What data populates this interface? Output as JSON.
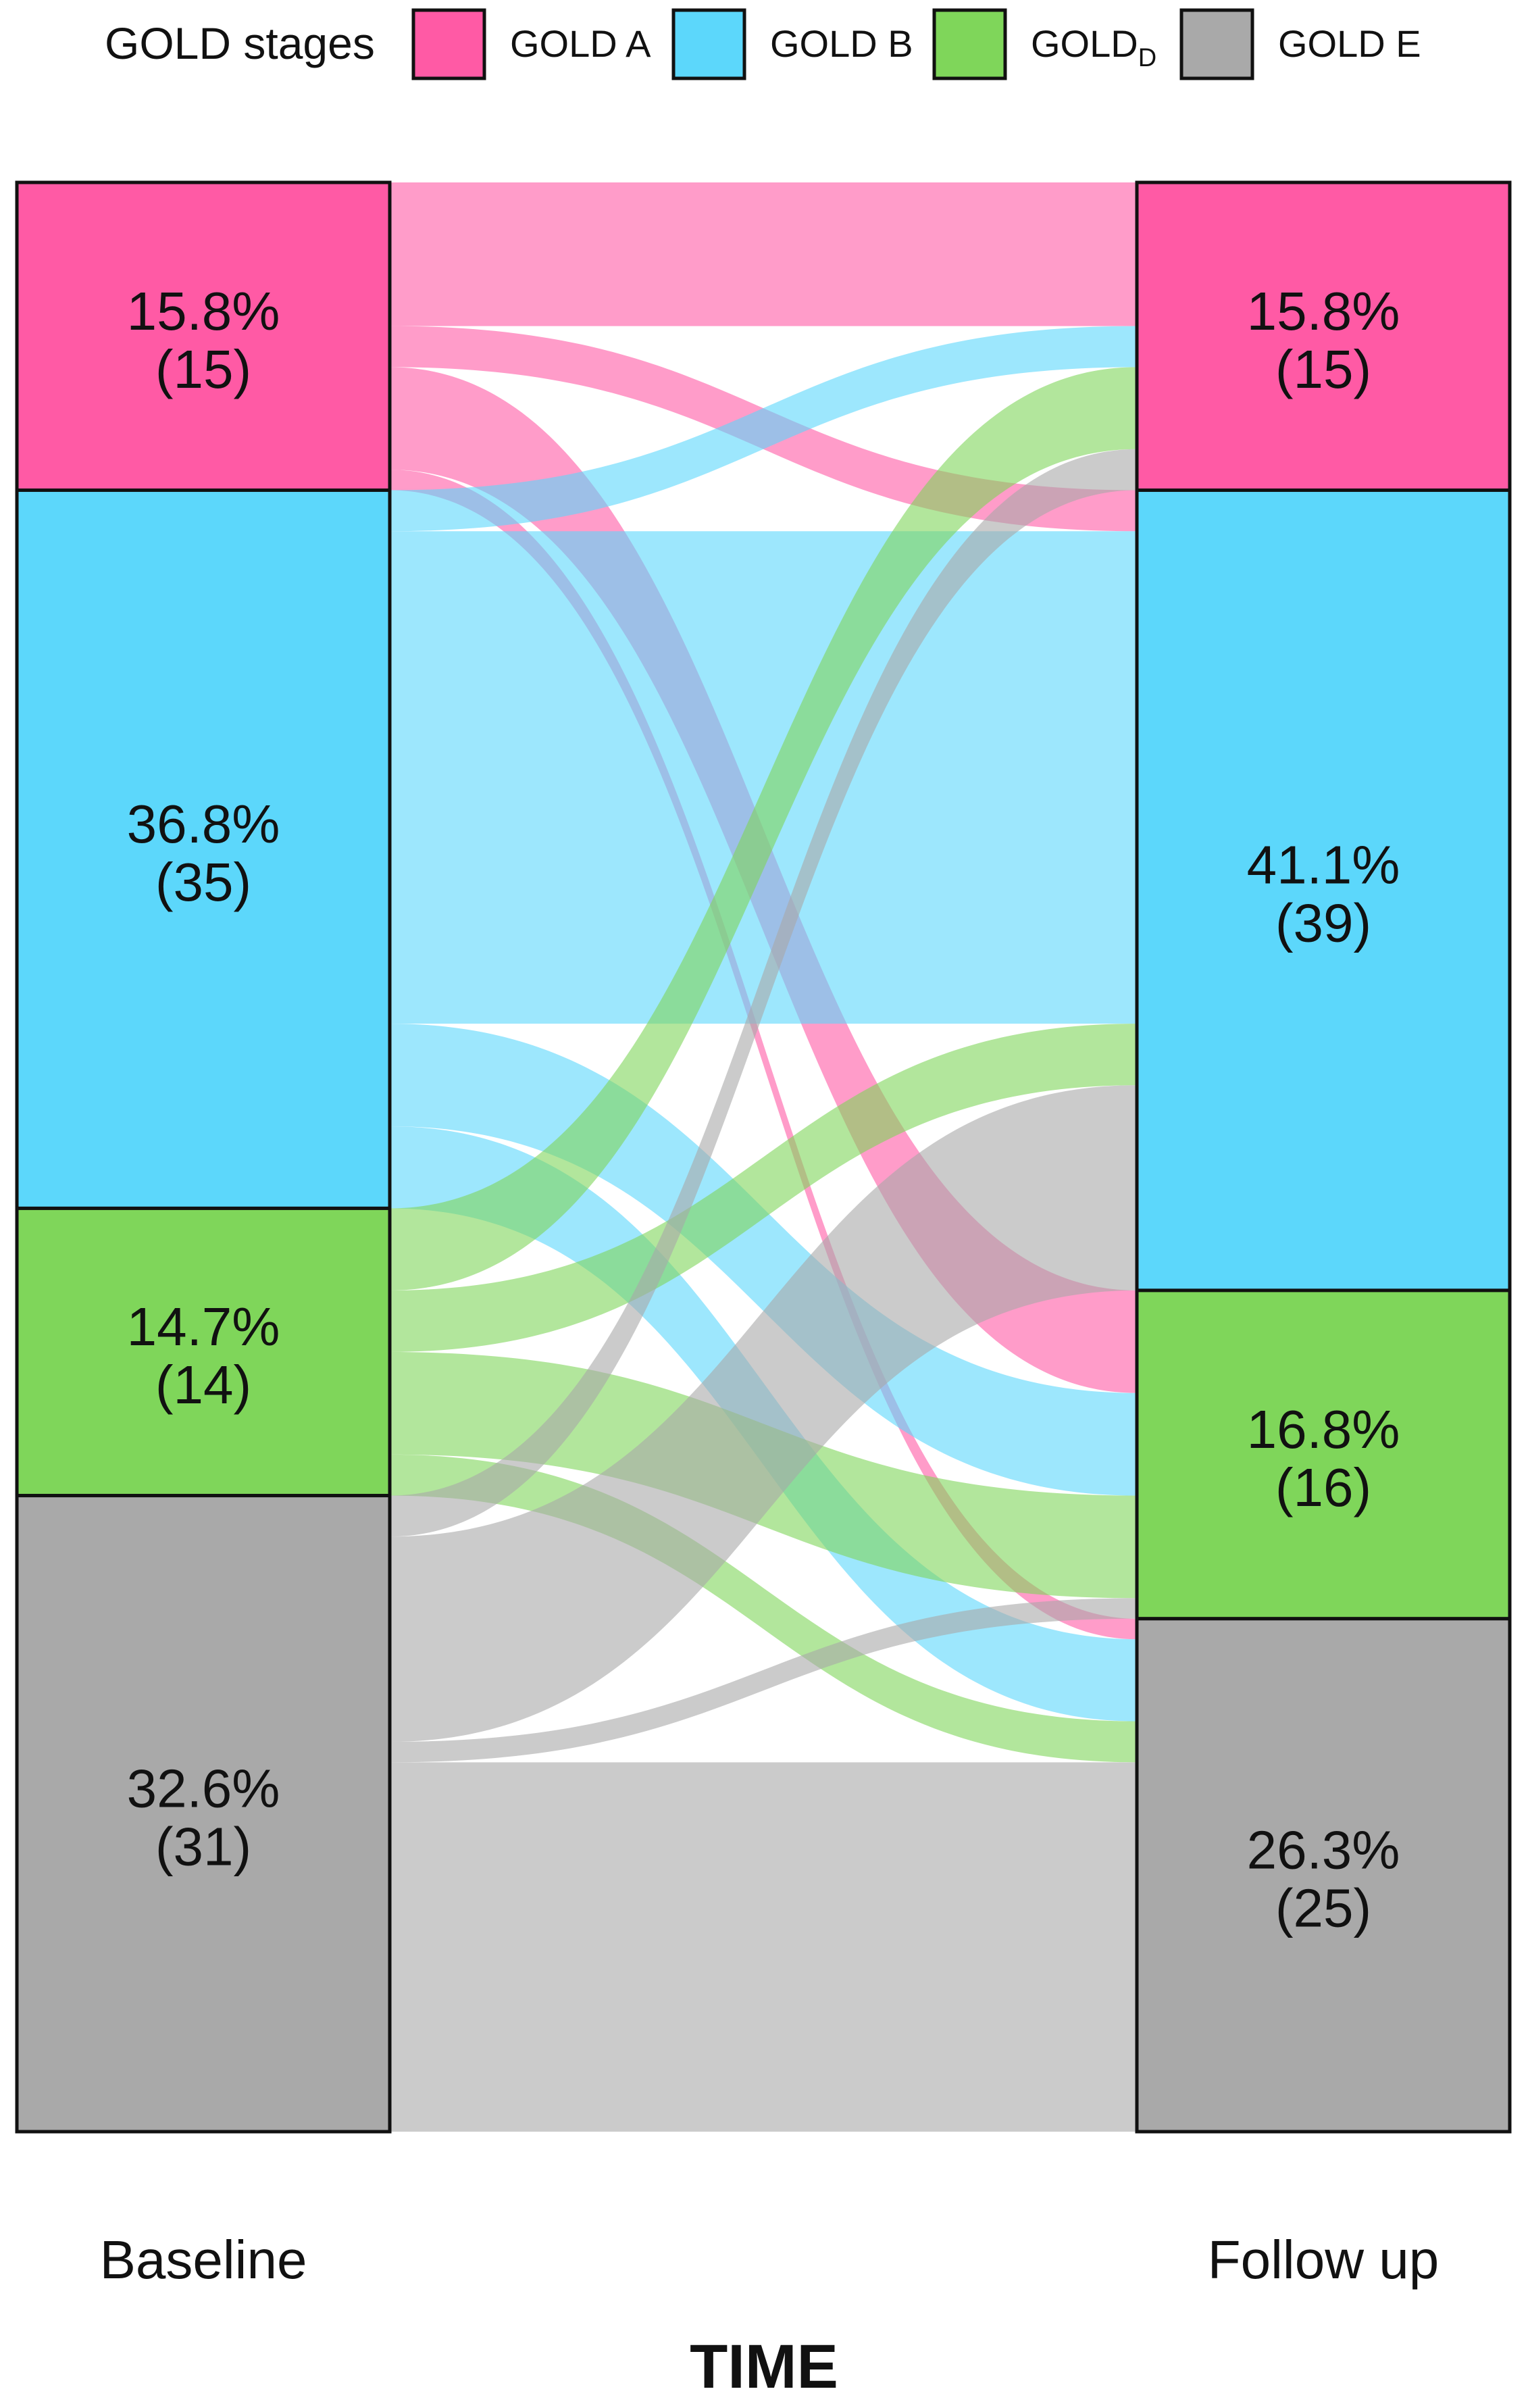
{
  "chart_data": {
    "type": "alluvial",
    "legend": {
      "title": "GOLD stages",
      "position": "top",
      "entries": [
        {
          "key": "A",
          "label": "GOLD A",
          "color": "#ff5aa5"
        },
        {
          "key": "B",
          "label": "GOLD B",
          "color": "#5cd7fb"
        },
        {
          "key": "D",
          "label_main": "GOLD",
          "label_sub": "D",
          "color": "#7fd65a"
        },
        {
          "key": "E",
          "label": "GOLD E",
          "color": "#a9a9a9"
        }
      ]
    },
    "stage_order": [
      "A",
      "B",
      "D",
      "E"
    ],
    "timepoints": [
      {
        "label": "Baseline",
        "stages": [
          {
            "stage": "A",
            "count": 15,
            "percent_label": "15.8%",
            "count_label": "(15)"
          },
          {
            "stage": "B",
            "count": 35,
            "percent_label": "36.8%",
            "count_label": "(35)"
          },
          {
            "stage": "D",
            "count": 14,
            "percent_label": "14.7%",
            "count_label": "(14)"
          },
          {
            "stage": "E",
            "count": 31,
            "percent_label": "32.6%",
            "count_label": "(31)"
          }
        ]
      },
      {
        "label": "Follow up",
        "stages": [
          {
            "stage": "A",
            "count": 15,
            "percent_label": "15.8%",
            "count_label": "(15)"
          },
          {
            "stage": "B",
            "count": 39,
            "percent_label": "41.1%",
            "count_label": "(39)"
          },
          {
            "stage": "D",
            "count": 16,
            "percent_label": "16.8%",
            "count_label": "(16)"
          },
          {
            "stage": "E",
            "count": 25,
            "percent_label": "26.3%",
            "count_label": "(25)"
          }
        ]
      }
    ],
    "flows": [
      {
        "from": "A",
        "to": "A",
        "count": 7
      },
      {
        "from": "A",
        "to": "B",
        "count": 2
      },
      {
        "from": "A",
        "to": "D",
        "count": 5
      },
      {
        "from": "A",
        "to": "E",
        "count": 1
      },
      {
        "from": "B",
        "to": "A",
        "count": 2
      },
      {
        "from": "B",
        "to": "B",
        "count": 24
      },
      {
        "from": "B",
        "to": "D",
        "count": 5
      },
      {
        "from": "B",
        "to": "E",
        "count": 4
      },
      {
        "from": "D",
        "to": "A",
        "count": 4
      },
      {
        "from": "D",
        "to": "B",
        "count": 3
      },
      {
        "from": "D",
        "to": "D",
        "count": 5
      },
      {
        "from": "D",
        "to": "E",
        "count": 2
      },
      {
        "from": "E",
        "to": "A",
        "count": 2
      },
      {
        "from": "E",
        "to": "B",
        "count": 10
      },
      {
        "from": "E",
        "to": "D",
        "count": 1
      },
      {
        "from": "E",
        "to": "E",
        "count": 18
      }
    ],
    "total": 95,
    "xlabel": "TIME"
  }
}
